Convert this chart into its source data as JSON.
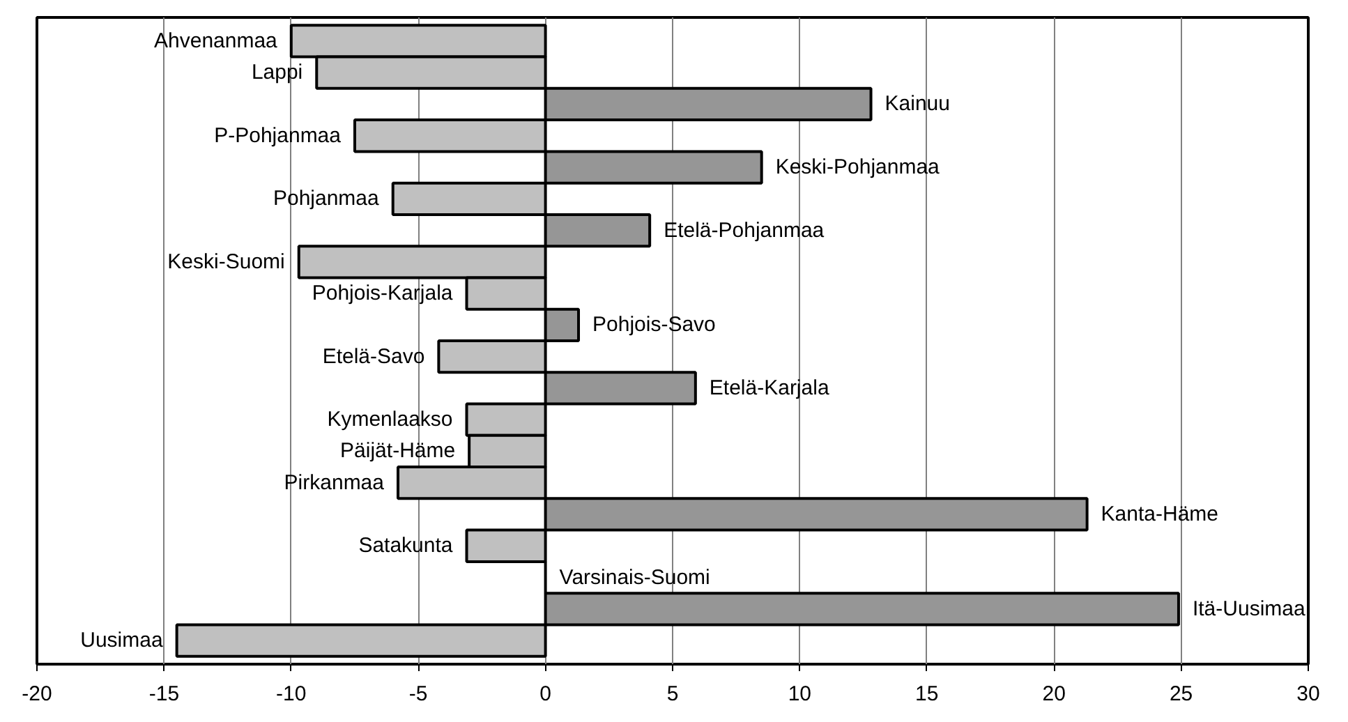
{
  "chart_data": {
    "type": "bar",
    "orientation": "horizontal",
    "categories": [
      "Ahvenanmaa",
      "Lappi",
      "Kainuu",
      "P-Pohjanmaa",
      "Keski-Pohjanmaa",
      "Pohjanmaa",
      "Etelä-Pohjanmaa",
      "Keski-Suomi",
      "Pohjois-Karjala",
      "Pohjois-Savo",
      "Etelä-Savo",
      "Etelä-Karjala",
      "Kymenlaakso",
      "Päijät-Häme",
      "Pirkanmaa",
      "Kanta-Häme",
      "Satakunta",
      "Varsinais-Suomi",
      "Itä-Uusimaa",
      "Uusimaa"
    ],
    "values": [
      -10.0,
      -9.0,
      12.8,
      -7.5,
      8.5,
      -6.0,
      4.1,
      -9.7,
      -3.1,
      1.3,
      -4.2,
      5.9,
      -3.1,
      -3.0,
      -5.8,
      21.3,
      -3.1,
      0,
      24.9,
      -14.5
    ],
    "colors": [
      "#c0c0c0",
      "#c0c0c0",
      "#969696",
      "#c0c0c0",
      "#969696",
      "#c0c0c0",
      "#969696",
      "#c0c0c0",
      "#c0c0c0",
      "#969696",
      "#c0c0c0",
      "#969696",
      "#c0c0c0",
      "#c0c0c0",
      "#c0c0c0",
      "#969696",
      "#c0c0c0",
      "#000000",
      "#969696",
      "#c0c0c0"
    ],
    "xlim": [
      -20,
      30
    ],
    "xticks": [
      -20,
      -15,
      -10,
      -5,
      0,
      5,
      10,
      15,
      20,
      25,
      30
    ],
    "grid": "x",
    "tick_labels": "x"
  }
}
